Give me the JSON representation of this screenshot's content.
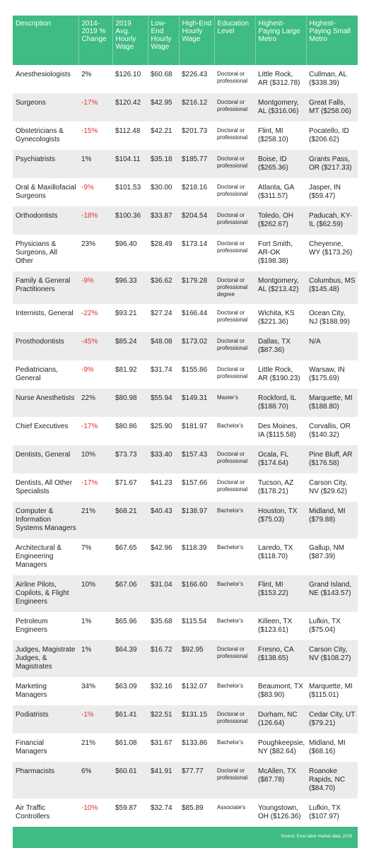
{
  "table": {
    "header": [
      "Description",
      "2014-2019 % Change",
      "2019 Avg. Hourly Wage",
      "Low-End Hourly Wage",
      "High-End Hourly Wage",
      "Education Level",
      "Highest-Paying Large Metro",
      "Highest-Paying Small Metro"
    ],
    "rows": [
      [
        "Anesthesiologists",
        "2%",
        "$126.10",
        "$60.68",
        "$226.43",
        "Doctoral or professional",
        "Little Rock, AR ($312.78)",
        "Cullman, AL ($338.39)"
      ],
      [
        "Surgeons",
        "-17%",
        "$120.42",
        "$42.95",
        "$216.12",
        "Doctoral or professional",
        "Montgomery, AL ($316.06)",
        "Great Falls, MT ($258.06)"
      ],
      [
        "Obstetricians & Gynecologists",
        "-15%",
        "$112.48",
        "$42.21",
        "$201.73",
        "Doctoral or professional",
        "Flint, MI ($258.10)",
        "Pocatello, ID ($206.62)"
      ],
      [
        "Psychiatrists",
        "1%",
        "$104.11",
        "$35.18",
        "$185.77",
        "Doctoral or professional",
        "Boise, ID ($265.36)",
        "Grants Pass, OR ($217.33)"
      ],
      [
        "Oral & Maxillofacial Surgeons",
        "-9%",
        "$101.53",
        "$30.00",
        "$218.16",
        "Doctoral or professional",
        "Atlanta, GA ($311.57)",
        "Jasper, IN ($59.47)"
      ],
      [
        "Orthodontists",
        "-18%",
        "$100.36",
        "$33.87",
        "$204.54",
        "Doctoral or professional",
        "Toledo, OH ($262.67)",
        "Paducah, KY-IL ($62.59)"
      ],
      [
        "Physicians & Surgeons, All Other",
        "23%",
        "$96.40",
        "$28.49",
        "$173.14",
        "Doctoral or professional",
        "Fort Smith, AR-OK ($198.38)",
        "Cheyenne, WY ($173.26)"
      ],
      [
        "Family & General Practitioners",
        "-9%",
        "$96.33",
        "$36.62",
        "$179.28",
        "Doctoral or professional degree",
        "Montgomery, AL ($213.42)",
        "Columbus, MS ($145.48)"
      ],
      [
        "Internists, General",
        "-22%",
        "$93.21",
        "$27.24",
        "$166.44",
        "Doctoral or professional",
        "Wichita, KS ($221.36)",
        "Ocean City, NJ ($188.99)"
      ],
      [
        "Prosthodontists",
        "-45%",
        "$85.24",
        "$48.08",
        "$173.02",
        "Doctoral or professional",
        "Dallas, TX ($87.36)",
        "N/A"
      ],
      [
        "Pediatricians, General",
        "-9%",
        "$81.92",
        "$31.74",
        "$155.86",
        "Doctoral or professional",
        "Little Rock, AR ($190.23)",
        "Warsaw, IN ($175.69)"
      ],
      [
        "Nurse Anesthetists",
        "22%",
        "$80.98",
        "$55.94",
        "$149.31",
        "Master's",
        "Rockford, IL ($188.70)",
        "Marquette, MI ($188.80)"
      ],
      [
        "Chief Executives",
        "-17%",
        "$80.86",
        "$25.90",
        "$181.97",
        "Bachelor's",
        "Des Moines, IA ($115.58)",
        "Corvallis, OR ($140.32)"
      ],
      [
        "Dentists, General",
        "10%",
        "$73.73",
        "$33.40",
        "$157.43",
        "Doctoral or professional",
        "Ocala, FL ($174.64)",
        "Pine Bluff, AR ($176.58)"
      ],
      [
        "Dentists, All Other Specialists",
        "-17%",
        "$71.67",
        "$41.23",
        "$157.66",
        "Doctoral or professional",
        "Tucson, AZ ($178.21)",
        "Carson City, NV ($29.62)"
      ],
      [
        "Computer & Information Systems Managers",
        "21%",
        "$68.21",
        "$40.43",
        "$138.97",
        "Bachelor's",
        "Houston, TX ($75.03)",
        "Midland, MI ($79.88)"
      ],
      [
        "Architectural & Engineering Managers",
        "7%",
        "$67.65",
        "$42.96",
        "$118.39",
        "Bachelor's",
        "Laredo, TX ($118.70)",
        "Gallup, NM ($87.39)"
      ],
      [
        "Airline Pilots, Copilots, & Flight Engineers",
        "10%",
        "$67.06",
        "$31.04",
        "$166.60",
        "Bachelor's",
        "Flint, MI ($153.22)",
        "Grand Island, NE ($143.57)"
      ],
      [
        "Petroleum Engineers",
        "1%",
        "$65.96",
        "$35.68",
        "$115.54",
        "Bachelor's",
        "Killeen, TX ($123.61)",
        "Lufkin, TX ($75.04)"
      ],
      [
        "Judges, Magistrate Judges, & Magistrates",
        "1%",
        "$64.39",
        "$16.72",
        "$92.95",
        "Doctoral or professional",
        "Fresno, CA ($138.65)",
        "Carson City, NV ($108.27)"
      ],
      [
        "Marketing Managers",
        "34%",
        "$63.09",
        "$32.16",
        "$132.07",
        "Bachelor's",
        "Beaumont, TX ($83.90)",
        "Marquette, MI ($115.01)"
      ],
      [
        "Podiatrists",
        "-1%",
        "$61.41",
        "$22.51",
        "$131.15",
        "Doctoral or professional",
        "Durham, NC (126.64)",
        "Cedar City, UT ($79.21)"
      ],
      [
        "Financial Managers",
        "21%",
        "$61.08",
        "$31.67",
        "$133.86",
        "Bachelor's",
        "Poughkeepsie, NY ($82.64)",
        "Midland, MI ($68.16)"
      ],
      [
        "Pharmacists",
        "6%",
        "$60.61",
        "$41.91",
        "$77.77",
        "Doctoral or professional",
        "McAllen, TX ($87.78)",
        "Roanoke Rapids, NC ($84.70)"
      ],
      [
        "Air Traffic Controllers",
        "-10%",
        "$59.87",
        "$32.74",
        "$85.89",
        "Associate's",
        "Youngstown, OH ($126.36)",
        "Lufkin, TX ($107.97)"
      ]
    ],
    "source": "Source: Emsi labor market data, 2019"
  }
}
